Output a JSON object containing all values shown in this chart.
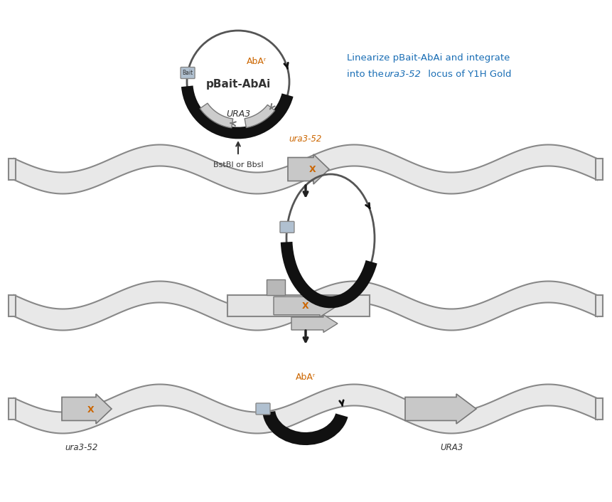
{
  "bg": "#ffffff",
  "plasmid_label": "pBait-AbAi",
  "plasmid_AbAr": "AbAʳ",
  "plasmid_URA3": "URA3",
  "plasmid_Bait": "Bait",
  "annotation_line1": "Linearize pBait-AbAi and integrate",
  "annotation_line2": "into the ura3-52 locus of Y1H Gold",
  "annotation_color": "#1a6eb5",
  "BstBI_label": "BstBI or BbsI",
  "ura3_top": "ura3-52",
  "ura3_bottom": "ura3-52",
  "URA3_bottom": "URA3",
  "AbAr_bottom": "AbAʳ",
  "wave_fc": "#e8e8e8",
  "wave_ec": "#888888",
  "black_color": "#111111",
  "gray_fc": "#c0c0c0",
  "gray_ec": "#777777",
  "bait_fc": "#b0c0d0",
  "bait_ec": "#888888",
  "orange_color": "#cc6600",
  "arrow_down_color": "#222222",
  "flat_fc": "#e4e4e4",
  "flat_ec": "#888888",
  "box_fc": "#b8b8b8",
  "box_ec": "#777777"
}
